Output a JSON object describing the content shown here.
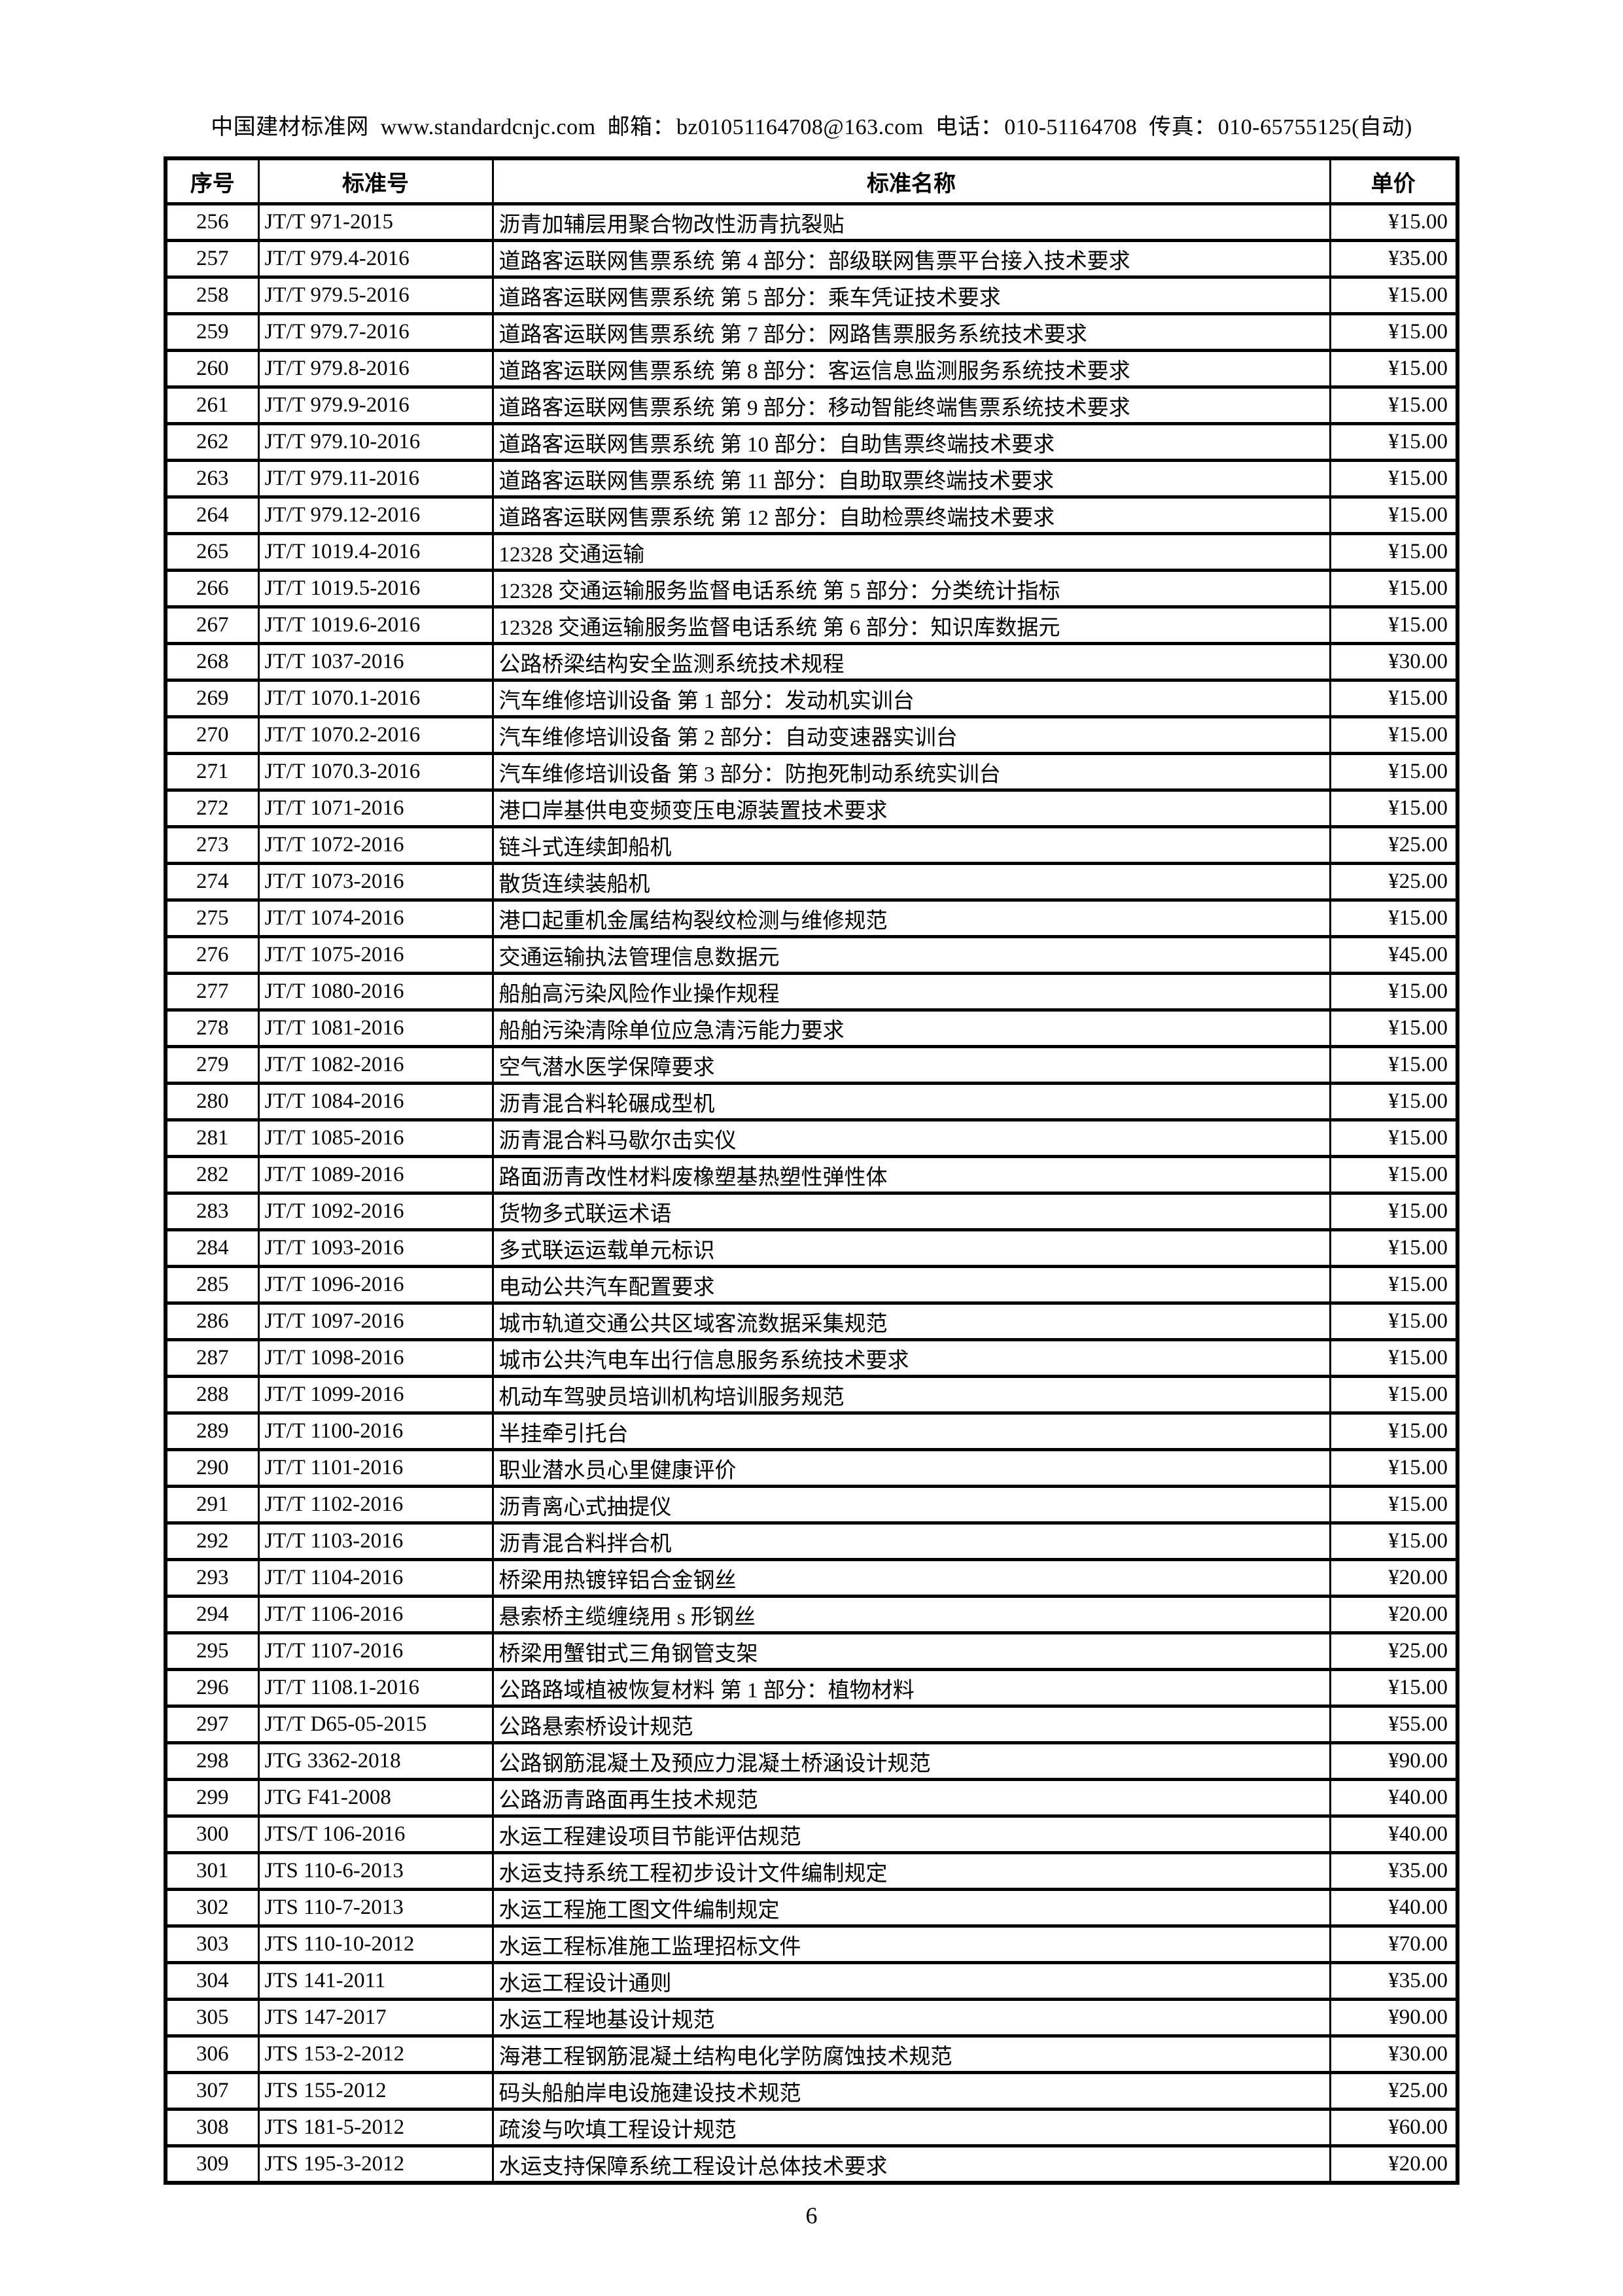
{
  "header": {
    "site_name": "中国建材标准网",
    "website": "www.standardcnjc.com",
    "email_label": "邮箱：",
    "email": "bz01051164708@163.com",
    "phone_label": "电话：",
    "phone": "010-51164708",
    "fax_label": "传真：",
    "fax": "010-65755125(自动)"
  },
  "table": {
    "columns": [
      "序号",
      "标准号",
      "标准名称",
      "单价"
    ],
    "rows": [
      [
        "256",
        "JT/T 971-2015",
        "沥青加辅层用聚合物改性沥青抗裂贴",
        "¥15.00"
      ],
      [
        "257",
        "JT/T 979.4-2016",
        "道路客运联网售票系统 第 4 部分：部级联网售票平台接入技术要求",
        "¥35.00"
      ],
      [
        "258",
        "JT/T 979.5-2016",
        "道路客运联网售票系统 第 5 部分：乘车凭证技术要求",
        "¥15.00"
      ],
      [
        "259",
        "JT/T 979.7-2016",
        "道路客运联网售票系统 第 7 部分：网路售票服务系统技术要求",
        "¥15.00"
      ],
      [
        "260",
        "JT/T 979.8-2016",
        "道路客运联网售票系统 第 8 部分：客运信息监测服务系统技术要求",
        "¥15.00"
      ],
      [
        "261",
        "JT/T 979.9-2016",
        "道路客运联网售票系统 第 9 部分：移动智能终端售票系统技术要求",
        "¥15.00"
      ],
      [
        "262",
        "JT/T 979.10-2016",
        "道路客运联网售票系统 第 10 部分：自助售票终端技术要求",
        "¥15.00"
      ],
      [
        "263",
        "JT/T 979.11-2016",
        "道路客运联网售票系统 第 11 部分：自助取票终端技术要求",
        "¥15.00"
      ],
      [
        "264",
        "JT/T 979.12-2016",
        "道路客运联网售票系统 第 12 部分：自助检票终端技术要求",
        "¥15.00"
      ],
      [
        "265",
        "JT/T 1019.4-2016",
        "12328 交通运输",
        "¥15.00"
      ],
      [
        "266",
        "JT/T 1019.5-2016",
        "12328 交通运输服务监督电话系统 第 5 部分：分类统计指标",
        "¥15.00"
      ],
      [
        "267",
        "JT/T 1019.6-2016",
        "12328 交通运输服务监督电话系统 第 6 部分：知识库数据元",
        "¥15.00"
      ],
      [
        "268",
        "JT/T 1037-2016",
        "公路桥梁结构安全监测系统技术规程",
        "¥30.00"
      ],
      [
        "269",
        "JT/T 1070.1-2016",
        "汽车维修培训设备 第 1 部分：发动机实训台",
        "¥15.00"
      ],
      [
        "270",
        "JT/T 1070.2-2016",
        "汽车维修培训设备 第 2 部分：自动变速器实训台",
        "¥15.00"
      ],
      [
        "271",
        "JT/T 1070.3-2016",
        "汽车维修培训设备 第 3 部分：防抱死制动系统实训台",
        "¥15.00"
      ],
      [
        "272",
        "JT/T 1071-2016",
        "港口岸基供电变频变压电源装置技术要求",
        "¥15.00"
      ],
      [
        "273",
        "JT/T 1072-2016",
        "链斗式连续卸船机",
        "¥25.00"
      ],
      [
        "274",
        "JT/T 1073-2016",
        "散货连续装船机",
        "¥25.00"
      ],
      [
        "275",
        "JT/T 1074-2016",
        "港口起重机金属结构裂纹检测与维修规范",
        "¥15.00"
      ],
      [
        "276",
        "JT/T 1075-2016",
        "交通运输执法管理信息数据元",
        "¥45.00"
      ],
      [
        "277",
        "JT/T 1080-2016",
        "船舶高污染风险作业操作规程",
        "¥15.00"
      ],
      [
        "278",
        "JT/T 1081-2016",
        "船舶污染清除单位应急清污能力要求",
        "¥15.00"
      ],
      [
        "279",
        "JT/T 1082-2016",
        "空气潜水医学保障要求",
        "¥15.00"
      ],
      [
        "280",
        "JT/T 1084-2016",
        "沥青混合料轮碾成型机",
        "¥15.00"
      ],
      [
        "281",
        "JT/T 1085-2016",
        "沥青混合料马歇尔击实仪",
        "¥15.00"
      ],
      [
        "282",
        "JT/T 1089-2016",
        "路面沥青改性材料废橡塑基热塑性弹性体",
        "¥15.00"
      ],
      [
        "283",
        "JT/T 1092-2016",
        "货物多式联运术语",
        "¥15.00"
      ],
      [
        "284",
        "JT/T 1093-2016",
        "多式联运运载单元标识",
        "¥15.00"
      ],
      [
        "285",
        "JT/T 1096-2016",
        "电动公共汽车配置要求",
        "¥15.00"
      ],
      [
        "286",
        "JT/T 1097-2016",
        "城市轨道交通公共区域客流数据采集规范",
        "¥15.00"
      ],
      [
        "287",
        "JT/T 1098-2016",
        "城市公共汽电车出行信息服务系统技术要求",
        "¥15.00"
      ],
      [
        "288",
        "JT/T 1099-2016",
        "机动车驾驶员培训机构培训服务规范",
        "¥15.00"
      ],
      [
        "289",
        "JT/T 1100-2016",
        "半挂牵引托台",
        "¥15.00"
      ],
      [
        "290",
        "JT/T 1101-2016",
        "职业潜水员心里健康评价",
        "¥15.00"
      ],
      [
        "291",
        "JT/T 1102-2016",
        "沥青离心式抽提仪",
        "¥15.00"
      ],
      [
        "292",
        "JT/T 1103-2016",
        "沥青混合料拌合机",
        "¥15.00"
      ],
      [
        "293",
        "JT/T 1104-2016",
        "桥梁用热镀锌铝合金钢丝",
        "¥20.00"
      ],
      [
        "294",
        "JT/T 1106-2016",
        "悬索桥主缆缠绕用 s 形钢丝",
        "¥20.00"
      ],
      [
        "295",
        "JT/T 1107-2016",
        "桥梁用蟹钳式三角钢管支架",
        "¥25.00"
      ],
      [
        "296",
        "JT/T 1108.1-2016",
        "公路路域植被恢复材料 第 1 部分：植物材料",
        "¥15.00"
      ],
      [
        "297",
        "JT/T D65-05-2015",
        "公路悬索桥设计规范",
        "¥55.00"
      ],
      [
        "298",
        "JTG 3362-2018",
        "公路钢筋混凝土及预应力混凝土桥涵设计规范",
        "¥90.00"
      ],
      [
        "299",
        "JTG F41-2008",
        "公路沥青路面再生技术规范",
        "¥40.00"
      ],
      [
        "300",
        "JTS/T 106-2016",
        "水运工程建设项目节能评估规范",
        "¥40.00"
      ],
      [
        "301",
        "JTS 110-6-2013",
        "水运支持系统工程初步设计文件编制规定",
        "¥35.00"
      ],
      [
        "302",
        "JTS 110-7-2013",
        "水运工程施工图文件编制规定",
        "¥40.00"
      ],
      [
        "303",
        "JTS 110-10-2012",
        "水运工程标准施工监理招标文件",
        "¥70.00"
      ],
      [
        "304",
        "JTS 141-2011",
        "水运工程设计通则",
        "¥35.00"
      ],
      [
        "305",
        "JTS 147-2017",
        "水运工程地基设计规范",
        "¥90.00"
      ],
      [
        "306",
        "JTS 153-2-2012",
        "海港工程钢筋混凝土结构电化学防腐蚀技术规范",
        "¥30.00"
      ],
      [
        "307",
        "JTS 155-2012",
        "码头船舶岸电设施建设技术规范",
        "¥25.00"
      ],
      [
        "308",
        "JTS 181-5-2012",
        "疏浚与吹填工程设计规范",
        "¥60.00"
      ],
      [
        "309",
        "JTS 195-3-2012",
        "水运支持保障系统工程设计总体技术要求",
        "¥20.00"
      ]
    ]
  },
  "footer": {
    "page_number": "6"
  }
}
